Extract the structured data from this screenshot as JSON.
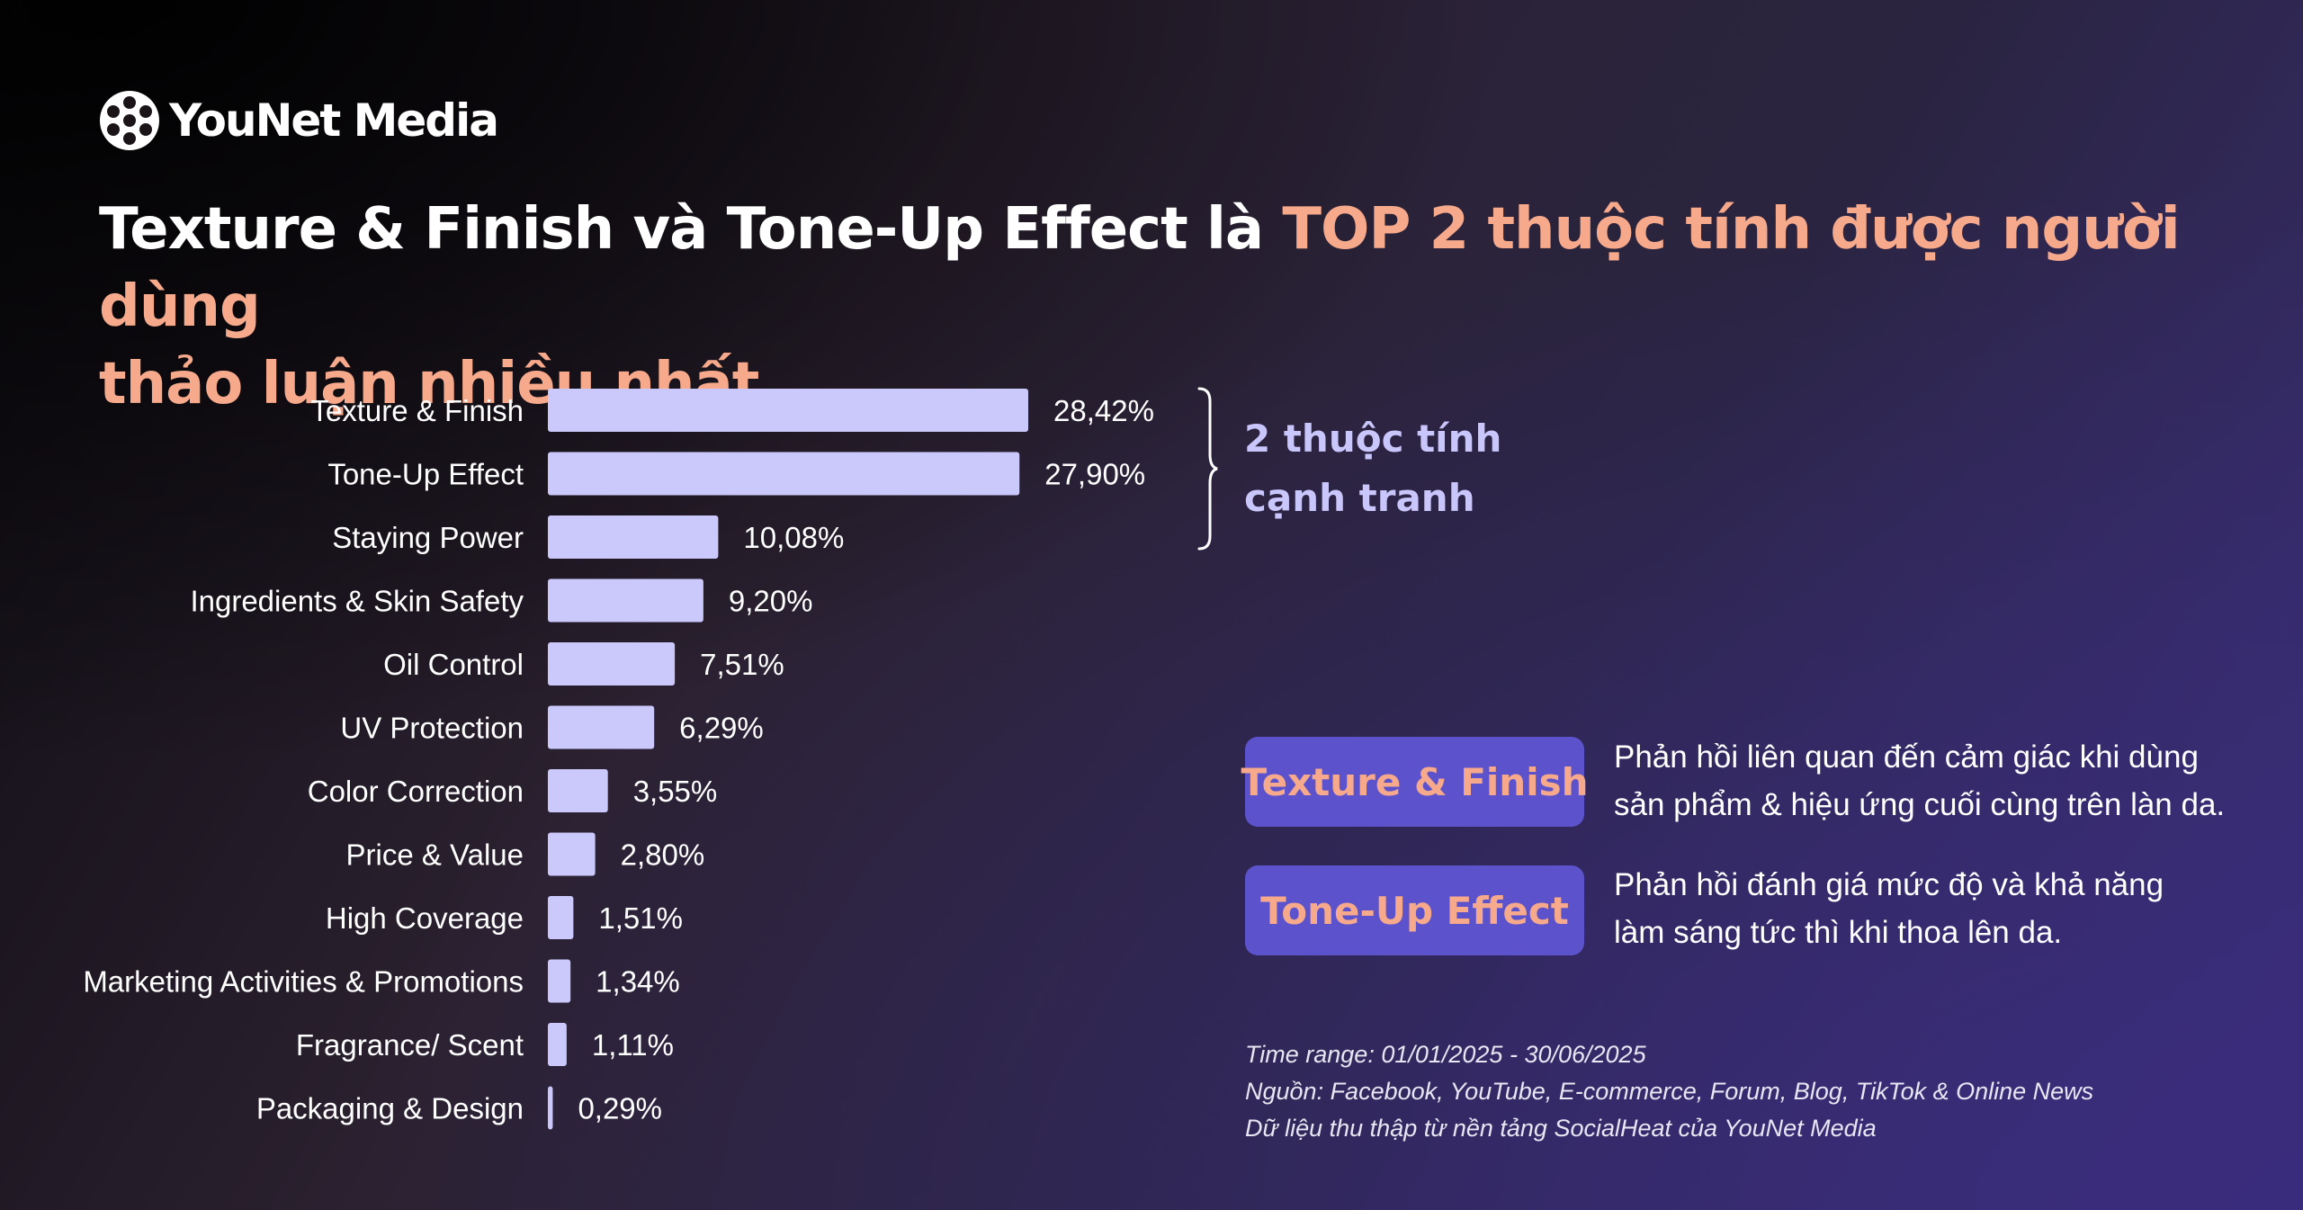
{
  "brand": {
    "logo_text": "YouNet Media"
  },
  "title": {
    "part1": "Texture & Finish và Tone-Up Effect là ",
    "part2_line1": "TOP 2 thuộc tính được người dùng",
    "part2_line2": "thảo luận nhiều nhất"
  },
  "chart_data": {
    "type": "bar",
    "orientation": "horizontal",
    "categories": [
      "Texture & Finish",
      "Tone-Up Effect",
      "Staying Power",
      "Ingredients & Skin Safety",
      "Oil Control",
      "UV Protection",
      "Color Correction",
      "Price & Value",
      "High Coverage",
      "Marketing Activities & Promotions",
      "Fragrance/ Scent",
      "Packaging & Design"
    ],
    "values": [
      28.42,
      27.9,
      10.08,
      9.2,
      7.51,
      6.29,
      3.55,
      2.8,
      1.51,
      1.34,
      1.11,
      0.29
    ],
    "value_labels": [
      "28,42%",
      "27,90%",
      "10,08%",
      "9,20%",
      "7,51%",
      "6,29%",
      "3,55%",
      "2,80%",
      "1,51%",
      "1,34%",
      "1,11%",
      "0,29%"
    ],
    "unit": "%",
    "xlim": [
      0,
      28.42
    ],
    "title": "",
    "xlabel": "",
    "ylabel": "",
    "grid": false,
    "annotation": {
      "line1": "2 thuộc tính",
      "line2": "cạnh tranh",
      "covers": [
        "Texture & Finish",
        "Tone-Up Effect"
      ]
    }
  },
  "definitions": [
    {
      "term": "Texture & Finish",
      "line1": "Phản hồi liên quan đến cảm giác khi dùng",
      "line2": "sản phẩm & hiệu ứng cuối cùng trên làn da."
    },
    {
      "term": "Tone-Up Effect",
      "line1": "Phản hồi đánh giá mức độ và khả năng",
      "line2": "làm sáng tức thì khi thoa lên da."
    }
  ],
  "footer": {
    "time_range": "Time range: 01/01/2025 - 30/06/2025",
    "source": "Nguồn: Facebook, YouTube, E-commerce, Forum, Blog, TikTok & Online News",
    "note": "Dữ liệu thu thập từ nền tảng SocialHeat của YouNet Media"
  },
  "colors": {
    "bar": "#cbc8fb",
    "accent": "#f7a98b",
    "pill": "#5c53cc",
    "annotation": "#c9c6fb"
  }
}
